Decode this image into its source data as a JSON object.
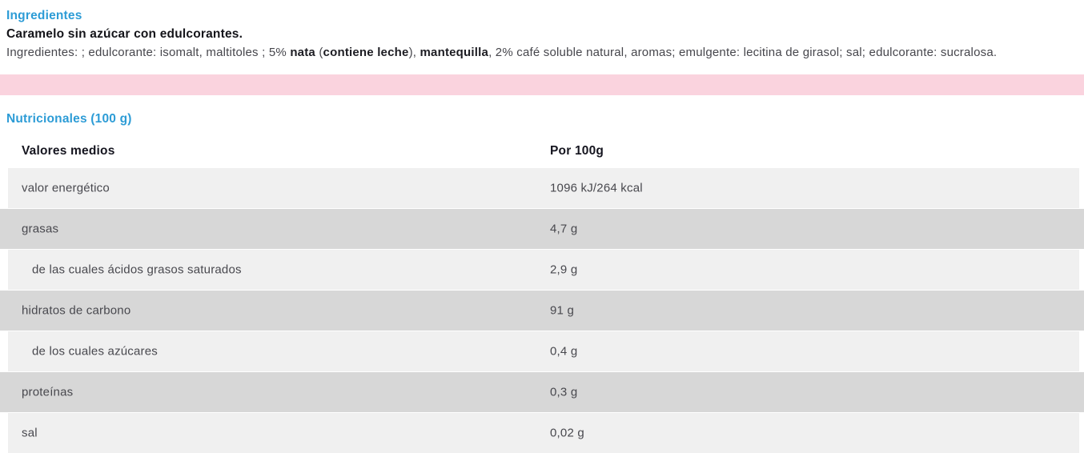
{
  "colors": {
    "accent_blue": "#2d9cd6",
    "pink_band": "#fad3de",
    "row_light": "#f0f0f0",
    "row_dark": "#d7d7d7",
    "heading_text": "#15151f",
    "body_text": "#46464c"
  },
  "ingredients_section": {
    "title": "Ingredientes",
    "product_line": "Caramelo sin azúcar con edulcorantes.",
    "ingredients_line_parts": [
      {
        "text": "Ingredientes: ; edulcorante: isomalt, maltitoles ; 5% ",
        "bold": false
      },
      {
        "text": "nata",
        "bold": true
      },
      {
        "text": " (",
        "bold": false
      },
      {
        "text": "contiene leche",
        "bold": true
      },
      {
        "text": "), ",
        "bold": false
      },
      {
        "text": "mantequilla",
        "bold": true
      },
      {
        "text": ", 2% café soluble natural, aromas; emulgente: lecitina de girasol; sal; edulcorante: sucralosa.",
        "bold": false
      }
    ]
  },
  "nutrition_section": {
    "title": "Nutricionales (100 g)",
    "table": {
      "header": {
        "label": "Valores medios",
        "value": "Por 100g"
      },
      "rows": [
        {
          "label": "valor energético",
          "value": "1096 kJ/264 kcal",
          "shade": "light",
          "indent": false
        },
        {
          "label": "grasas",
          "value": "4,7 g",
          "shade": "dark",
          "indent": false
        },
        {
          "label": "de las cuales ácidos grasos saturados",
          "value": "2,9 g",
          "shade": "light",
          "indent": true
        },
        {
          "label": "hidratos de carbono",
          "value": "91 g",
          "shade": "dark",
          "indent": false
        },
        {
          "label": "de los cuales azúcares",
          "value": "0,4 g",
          "shade": "light",
          "indent": true
        },
        {
          "label": "proteínas",
          "value": "0,3 g",
          "shade": "dark",
          "indent": false
        },
        {
          "label": "sal",
          "value": "0,02 g",
          "shade": "light",
          "indent": false
        }
      ]
    }
  }
}
